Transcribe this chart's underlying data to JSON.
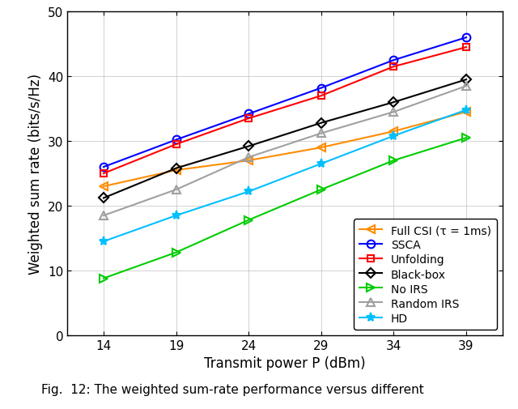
{
  "x": [
    14,
    19,
    24,
    29,
    34,
    39
  ],
  "series_order": [
    "Full CSI",
    "SSCA",
    "Unfolding",
    "Black-box",
    "No IRS",
    "Random IRS",
    "HD"
  ],
  "series": {
    "Full CSI": {
      "values": [
        23.0,
        25.5,
        27.0,
        29.0,
        31.5,
        34.5
      ],
      "color": "#FF8C00",
      "marker": "<",
      "markerfacecolor": "none",
      "markersize": 7,
      "label": "Full CSI (τ = 1ms)"
    },
    "SSCA": {
      "values": [
        26.0,
        30.2,
        34.2,
        38.2,
        42.5,
        46.0
      ],
      "color": "#0000FF",
      "marker": "o",
      "markerfacecolor": "none",
      "markersize": 7,
      "label": "SSCA"
    },
    "Unfolding": {
      "values": [
        25.0,
        29.5,
        33.5,
        37.0,
        41.5,
        44.5
      ],
      "color": "#FF0000",
      "marker": "s",
      "markerfacecolor": "none",
      "markersize": 6,
      "label": "Unfolding"
    },
    "Black-box": {
      "values": [
        21.2,
        25.8,
        29.2,
        32.8,
        36.0,
        39.5
      ],
      "color": "#000000",
      "marker": "D",
      "markerfacecolor": "none",
      "markersize": 6,
      "label": "Black-box"
    },
    "No IRS": {
      "values": [
        8.8,
        12.8,
        17.8,
        22.5,
        27.0,
        30.5
      ],
      "color": "#00CC00",
      "marker": ">",
      "markerfacecolor": "none",
      "markersize": 7,
      "label": "No IRS"
    },
    "Random IRS": {
      "values": [
        18.5,
        22.5,
        27.5,
        31.2,
        34.5,
        38.5
      ],
      "color": "#A0A0A0",
      "marker": "^",
      "markerfacecolor": "none",
      "markersize": 7,
      "label": "Random IRS"
    },
    "HD": {
      "values": [
        14.5,
        18.5,
        22.2,
        26.5,
        30.8,
        34.8
      ],
      "color": "#00BFFF",
      "marker": "*",
      "markerfacecolor": "#00BFFF",
      "markersize": 8,
      "label": "HD"
    }
  },
  "xlabel": "Transmit power P (dBm)",
  "ylabel": "Weighted sum rate (bits/s/Hz)",
  "xlim": [
    11.5,
    41.5
  ],
  "ylim": [
    0,
    50
  ],
  "yticks": [
    0,
    10,
    20,
    30,
    40,
    50
  ],
  "xticks": [
    14,
    19,
    24,
    29,
    34,
    39
  ],
  "caption": "Fig.  12: The weighted sum-rate performance versus different",
  "linewidth": 1.5,
  "axis_fontsize": 12,
  "tick_fontsize": 11,
  "legend_fontsize": 10,
  "caption_fontsize": 11,
  "figsize": [
    6.4,
    5.06
  ],
  "dpi": 100
}
